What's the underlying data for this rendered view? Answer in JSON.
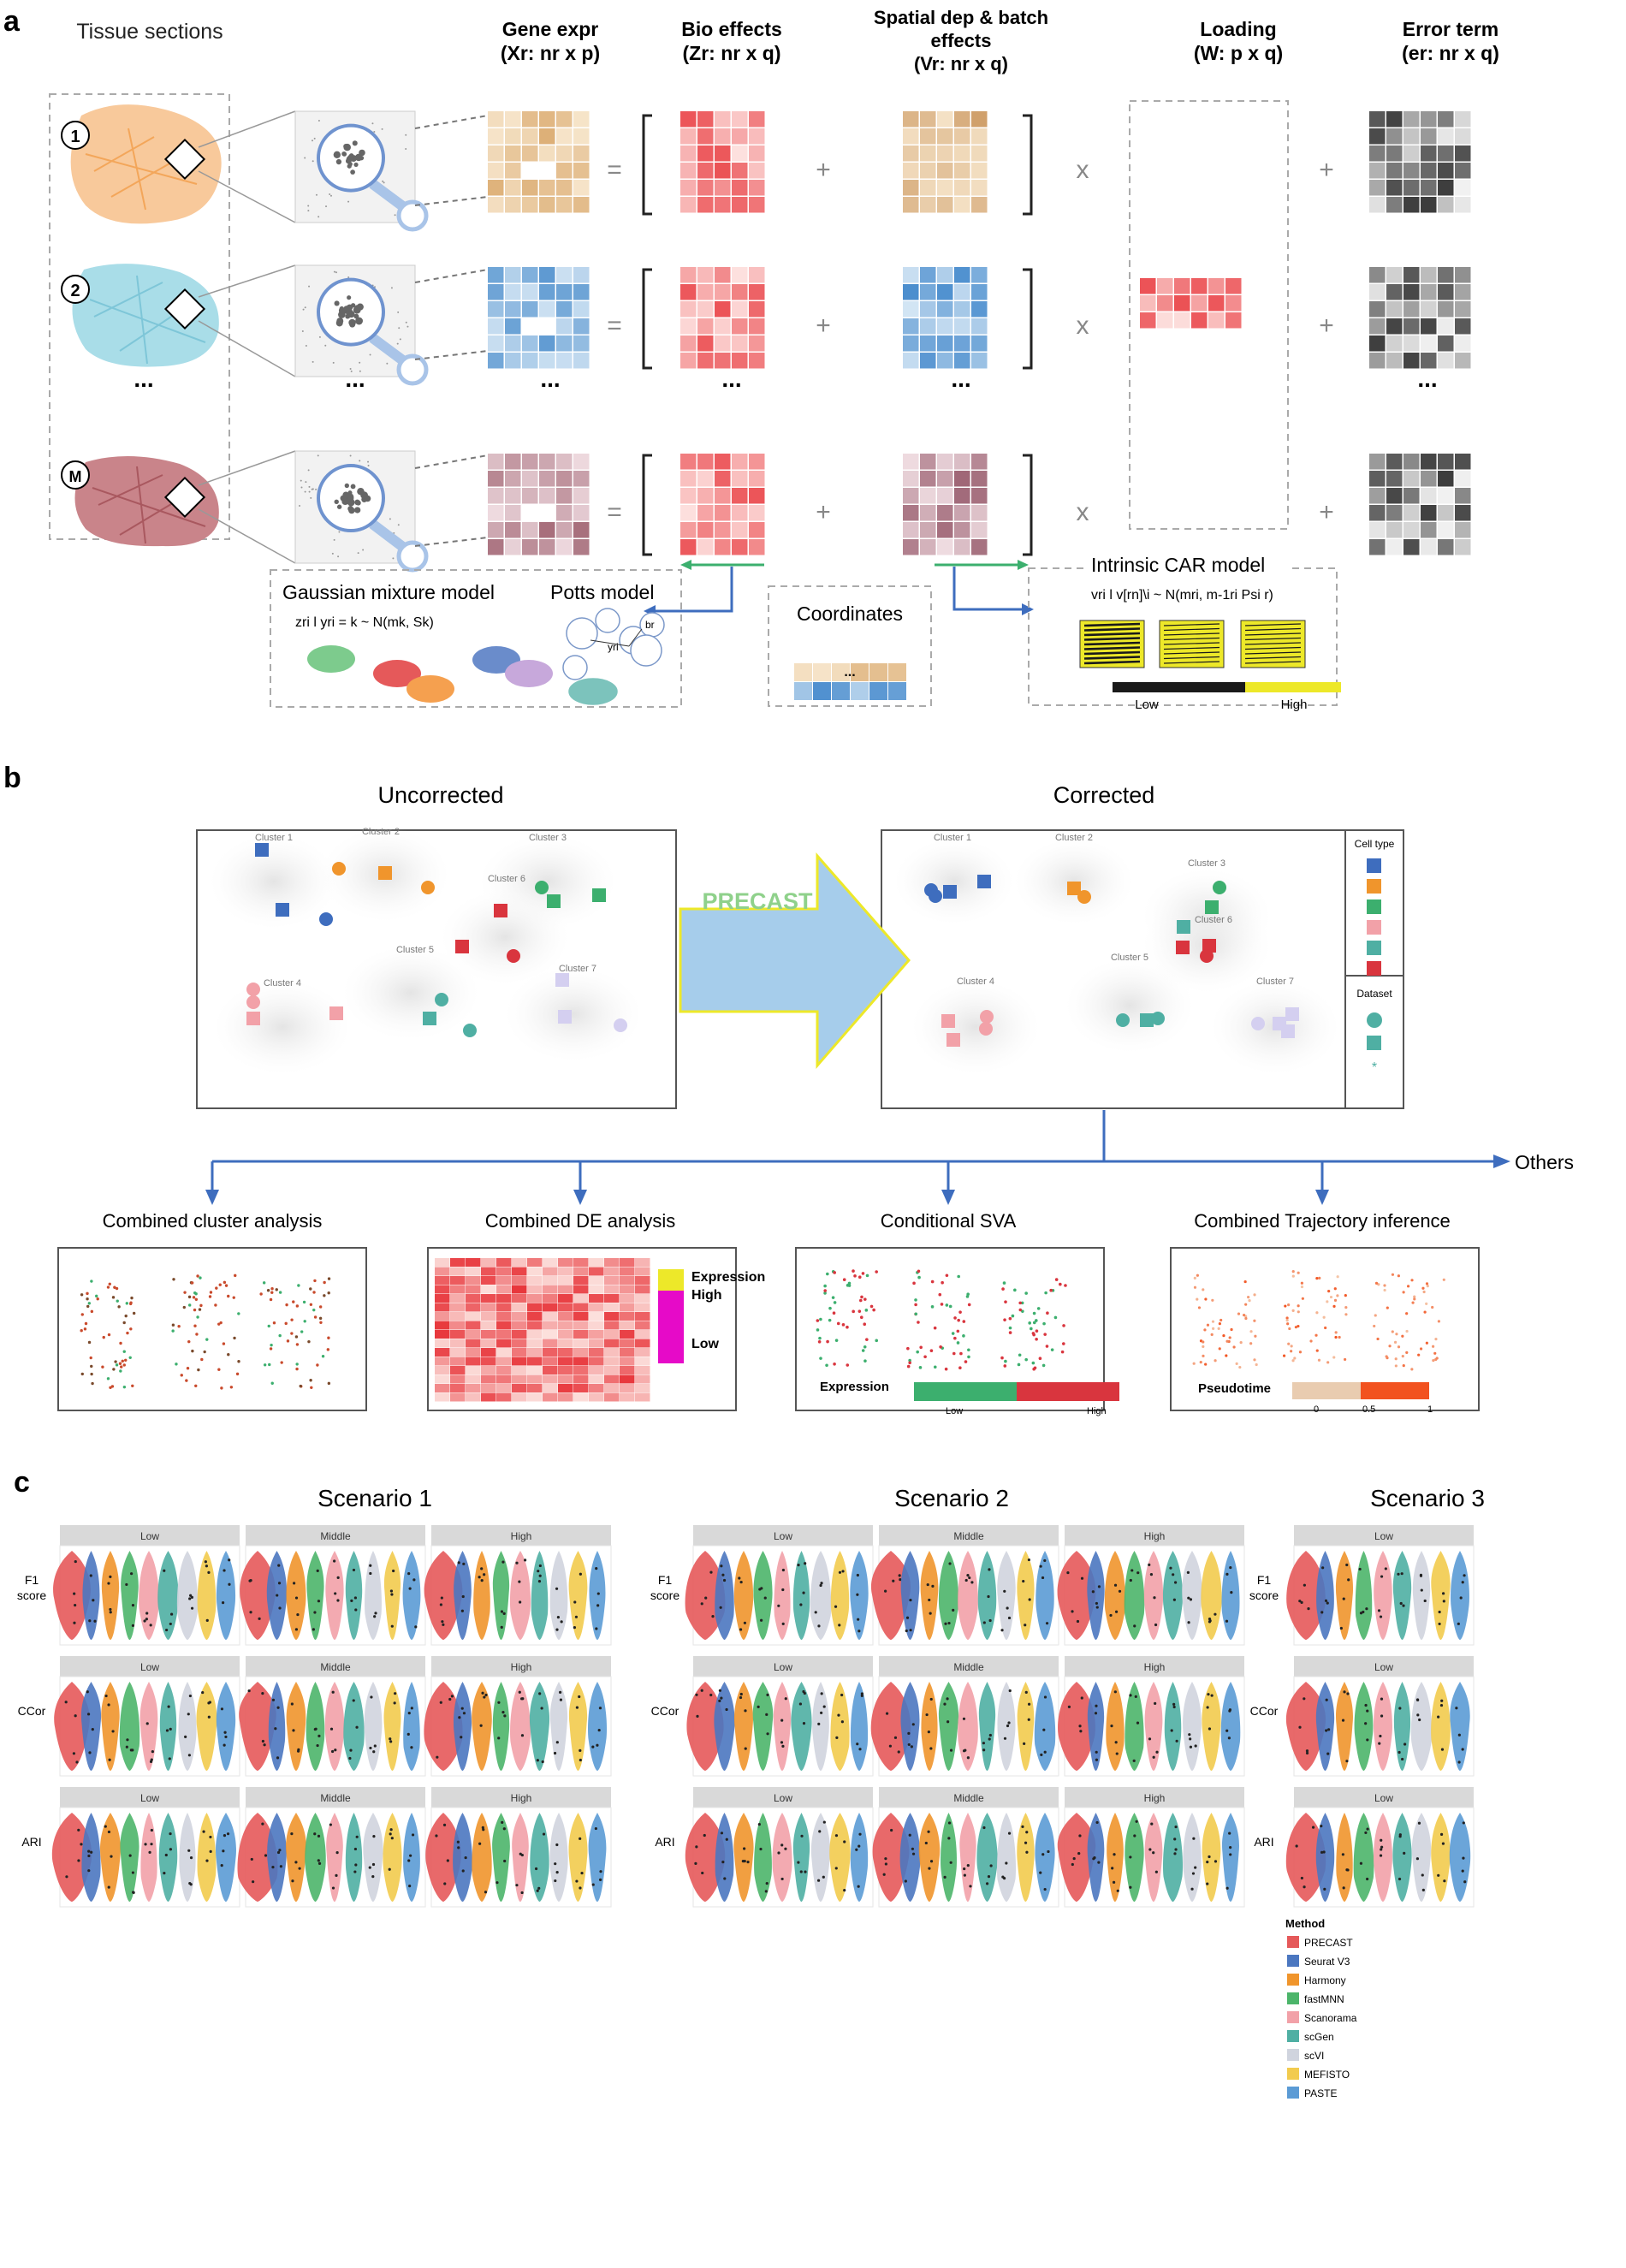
{
  "panel_a": {
    "letter": "a",
    "tissue_title": "Tissue sections",
    "columns": [
      {
        "line1": "Gene expr",
        "line2": "(Xr: nr x p)",
        "line3": ""
      },
      {
        "line1": "Bio effects",
        "line2": "(Zr: nr x q)",
        "line3": ""
      },
      {
        "line1": "Spatial dep & batch",
        "line2": "effects",
        "line3": "(Vr: nr x q)"
      },
      {
        "line1": "Loading",
        "line2": "(W: p x q)",
        "line3": ""
      },
      {
        "line1": "Error term",
        "line2": "(er: nr x q)",
        "line3": ""
      }
    ],
    "section_labels": [
      "1",
      "2",
      "M"
    ],
    "ellipsis": "...",
    "ops": {
      "eq": "=",
      "plus": "+",
      "times": "x"
    },
    "gmm_title": "Gaussian mixture model",
    "gmm_formula": "zri l yri = k ~ N(mk, Sk)",
    "potts_title": "Potts model",
    "potts_labels": {
      "yri": "yri",
      "br": "br"
    },
    "coords_title": "Coordinates",
    "car_title": "Intrinsic CAR model",
    "car_formula": "vri l v[rn]\\i ~ N(mri, m-1ri Psi r)",
    "car_low": "Low",
    "car_high": "High"
  },
  "panel_b": {
    "letter": "b",
    "uncorrected_title": "Uncorrected",
    "corrected_title": "Corrected",
    "arrow_label": "PRECAST",
    "clusters_uncorrected": [
      "Cluster 1",
      "Cluster 2",
      "Cluster 3",
      "Cluster 6",
      "Cluster 5",
      "Cluster 4",
      "Cluster 7"
    ],
    "clusters_corrected": [
      "Cluster 1",
      "Cluster 2",
      "Cluster 3",
      "Cluster 6",
      "Cluster 5",
      "Cluster 4",
      "Cluster 7"
    ],
    "legend_celltype": "Cell type",
    "legend_dataset": "Dataset",
    "legend_dataset_star": "*",
    "others": "Others",
    "analyses": [
      "Combined cluster analysis",
      "Combined DE analysis",
      "Conditional SVA",
      "Combined Trajectory inference"
    ],
    "de_expression": "Expression",
    "de_high": "High",
    "de_low": "Low",
    "sva_label": "Expression",
    "sva_low": "Low",
    "sva_high": "High",
    "traj_label": "Pseudotime",
    "traj_ticks": [
      "0",
      "0.5",
      "1"
    ]
  },
  "panel_c": {
    "letter": "c",
    "scenarios": [
      "Scenario 1",
      "Scenario 2",
      "Scenario 3"
    ],
    "levels": [
      "Low",
      "Middle",
      "High"
    ],
    "metrics": [
      {
        "line1": "F1",
        "line2": "score"
      },
      {
        "line1": "CCor",
        "line2": ""
      },
      {
        "line1": "ARI",
        "line2": ""
      }
    ],
    "legend_title": "Method",
    "methods": [
      {
        "name": "PRECAST",
        "color": "#E5595A"
      },
      {
        "name": "Seurat V3",
        "color": "#4B77C0"
      },
      {
        "name": "Harmony",
        "color": "#F0952C"
      },
      {
        "name": "fastMNN",
        "color": "#4CB56A"
      },
      {
        "name": "Scanorama",
        "color": "#F2A1A8"
      },
      {
        "name": "scGen",
        "color": "#4FAFA3"
      },
      {
        "name": "scVI",
        "color": "#D0D4DE"
      },
      {
        "name": "MEFISTO",
        "color": "#F2CB4E"
      },
      {
        "name": "PASTE",
        "color": "#5B9BD5"
      }
    ]
  },
  "colors": {
    "orange_tissue": "#F8C99B",
    "blue_tissue": "#A9DDE8",
    "red_tissue": "#C9848A",
    "arrow_blue": "#3E6DBE",
    "arrow_green": "#3CAF6E",
    "precast_green": "#8FD18B",
    "big_arrow": "#A6CDEB"
  },
  "celltype_colors": [
    "#3E6DBE",
    "#F0952C",
    "#3CAF6E",
    "#F2A1A8",
    "#4FAFA3",
    "#D9353E"
  ]
}
